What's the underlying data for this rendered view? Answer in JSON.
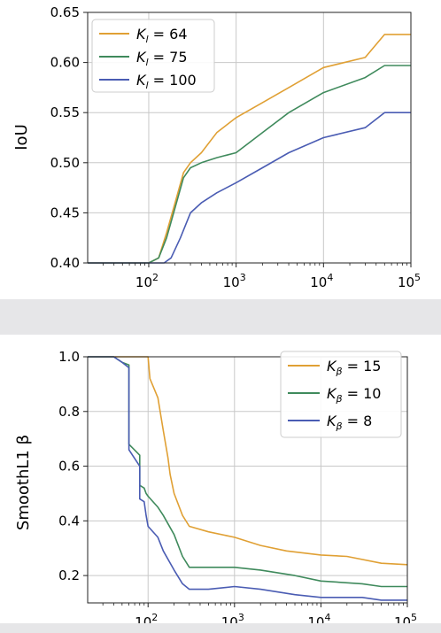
{
  "chart_data": [
    {
      "type": "line",
      "title": "",
      "xlabel": "",
      "ylabel": "IoU",
      "x_scale": "log",
      "xlim": [
        20,
        100000
      ],
      "ylim": [
        0.4,
        0.65
      ],
      "grid": true,
      "legend_position": "top-left",
      "x_ticks": [
        {
          "value": 100,
          "base": "10",
          "exp": "2"
        },
        {
          "value": 1000,
          "base": "10",
          "exp": "3"
        },
        {
          "value": 10000,
          "base": "10",
          "exp": "4"
        },
        {
          "value": 100000,
          "base": "10",
          "exp": "5"
        }
      ],
      "y_ticks": [
        {
          "value": 0.4,
          "label": "0.40"
        },
        {
          "value": 0.45,
          "label": "0.45"
        },
        {
          "value": 0.5,
          "label": "0.50"
        },
        {
          "value": 0.55,
          "label": "0.55"
        },
        {
          "value": 0.6,
          "label": "0.60"
        },
        {
          "value": 0.65,
          "label": "0.65"
        }
      ],
      "series": [
        {
          "name": "K_l = 64",
          "symbol": "K",
          "sub": "l",
          "rhs": "= 64",
          "color": "#e0a034",
          "x": [
            20,
            100,
            130,
            160,
            200,
            250,
            300,
            400,
            600,
            1000,
            2000,
            4000,
            10000,
            30000,
            50000,
            100000
          ],
          "y": [
            0.4,
            0.4,
            0.405,
            0.43,
            0.46,
            0.49,
            0.5,
            0.51,
            0.53,
            0.545,
            0.56,
            0.575,
            0.595,
            0.605,
            0.628,
            0.628
          ]
        },
        {
          "name": "K_l = 75",
          "symbol": "K",
          "sub": "l",
          "rhs": "= 75",
          "color": "#3f8a5c",
          "x": [
            20,
            100,
            130,
            160,
            200,
            250,
            300,
            400,
            600,
            1000,
            2000,
            4000,
            10000,
            30000,
            50000,
            100000
          ],
          "y": [
            0.4,
            0.4,
            0.405,
            0.425,
            0.455,
            0.485,
            0.495,
            0.5,
            0.505,
            0.51,
            0.53,
            0.55,
            0.57,
            0.585,
            0.597,
            0.597
          ]
        },
        {
          "name": "K_l = 100",
          "symbol": "K",
          "sub": "l",
          "rhs": "= 100",
          "color": "#4a5cb3",
          "x": [
            20,
            100,
            150,
            180,
            230,
            300,
            400,
            600,
            1000,
            2000,
            4000,
            10000,
            30000,
            50000,
            100000
          ],
          "y": [
            0.4,
            0.4,
            0.4,
            0.405,
            0.425,
            0.45,
            0.46,
            0.47,
            0.48,
            0.495,
            0.51,
            0.525,
            0.535,
            0.55,
            0.55
          ]
        }
      ]
    },
    {
      "type": "line",
      "title": "",
      "xlabel": "",
      "ylabel": "SmoothL1 β",
      "x_scale": "log",
      "xlim": [
        20,
        100000
      ],
      "ylim": [
        0.1,
        1.0
      ],
      "grid": true,
      "legend_position": "top-right",
      "x_ticks": [
        {
          "value": 100,
          "base": "10",
          "exp": "2"
        },
        {
          "value": 1000,
          "base": "10",
          "exp": "3"
        },
        {
          "value": 10000,
          "base": "10",
          "exp": "4"
        },
        {
          "value": 100000,
          "base": "10",
          "exp": "5"
        }
      ],
      "y_ticks": [
        {
          "value": 0.2,
          "label": "0.2"
        },
        {
          "value": 0.4,
          "label": "0.4"
        },
        {
          "value": 0.6,
          "label": "0.6"
        },
        {
          "value": 0.8,
          "label": "0.8"
        },
        {
          "value": 1.0,
          "label": "1.0"
        }
      ],
      "series": [
        {
          "name": "K_β = 15",
          "symbol": "K",
          "sub": "β",
          "rhs": "= 15",
          "color": "#e0a034",
          "x": [
            20,
            100,
            105,
            130,
            150,
            170,
            180,
            200,
            250,
            300,
            500,
            1000,
            2000,
            4000,
            10000,
            20000,
            50000,
            100000
          ],
          "y": [
            1.0,
            1.0,
            0.92,
            0.85,
            0.73,
            0.63,
            0.57,
            0.5,
            0.42,
            0.38,
            0.36,
            0.34,
            0.31,
            0.29,
            0.275,
            0.27,
            0.245,
            0.24
          ]
        },
        {
          "name": "K_β = 10",
          "symbol": "K",
          "sub": "β",
          "rhs": "= 10",
          "color": "#3f8a5c",
          "x": [
            20,
            40,
            50,
            60,
            60.01,
            80,
            80.01,
            90,
            95,
            100,
            130,
            150,
            200,
            250,
            300,
            500,
            1000,
            2000,
            5000,
            10000,
            30000,
            50000,
            100000
          ],
          "y": [
            1.0,
            1.0,
            0.98,
            0.97,
            0.68,
            0.64,
            0.53,
            0.52,
            0.5,
            0.49,
            0.45,
            0.42,
            0.35,
            0.27,
            0.23,
            0.23,
            0.23,
            0.22,
            0.2,
            0.18,
            0.17,
            0.16,
            0.16
          ]
        },
        {
          "name": "K_β = 8",
          "symbol": "K",
          "sub": "β",
          "rhs": "= 8",
          "color": "#4a5cb3",
          "x": [
            20,
            40,
            50,
            60,
            60.01,
            80,
            80.01,
            90,
            95,
            100,
            130,
            150,
            200,
            250,
            300,
            500,
            1000,
            2000,
            5000,
            10000,
            30000,
            50000,
            100000
          ],
          "y": [
            1.0,
            1.0,
            0.98,
            0.96,
            0.66,
            0.6,
            0.48,
            0.47,
            0.42,
            0.38,
            0.34,
            0.29,
            0.22,
            0.17,
            0.15,
            0.15,
            0.16,
            0.15,
            0.13,
            0.12,
            0.12,
            0.11,
            0.11
          ]
        }
      ]
    }
  ]
}
